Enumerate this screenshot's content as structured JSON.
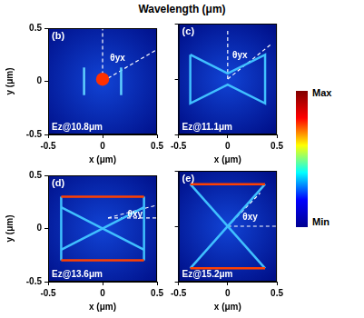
{
  "title": "Wavelength (μm)",
  "colorbar": {
    "max_label": "Max",
    "min_label": "Min"
  },
  "chart_data": [
    {
      "type": "scatter",
      "panel_label": "(b)",
      "annotation": "Ez@10.8μm",
      "angle_label": "θyx",
      "x_label": "x (μm)",
      "y_label": "y (μm)",
      "xlim": [
        -0.5,
        0.5
      ],
      "ylim": [
        -0.5,
        0.5
      ],
      "xticks": [
        -0.5,
        0,
        0.5
      ],
      "yticks": [
        -0.5,
        0,
        0.5
      ],
      "tick_labels": true,
      "grid": false,
      "features": [
        {
          "x": [
            -0.17,
            -0.17
          ],
          "y": [
            -0.13,
            0.13
          ],
          "color": "#60d0ff",
          "line_style": "solid"
        },
        {
          "x": [
            0.17,
            0.17
          ],
          "y": [
            -0.13,
            0.13
          ],
          "color": "#60d0ff",
          "line_style": "solid"
        },
        {
          "x": [
            0
          ],
          "y": [
            0.02
          ],
          "color": "#ff3000",
          "marker": "circle"
        },
        {
          "x": [
            0,
            0
          ],
          "y": [
            0,
            0.5
          ],
          "color": "#ffffff",
          "line_style": "dashed"
        },
        {
          "x": [
            0,
            0.5
          ],
          "y": [
            0,
            0.3
          ],
          "color": "#ffffff",
          "line_style": "dashed"
        }
      ]
    },
    {
      "type": "scatter",
      "panel_label": "(c)",
      "annotation": "Ez@11.1μm",
      "angle_label": "θyx",
      "x_label": "x (μm)",
      "xlim": [
        -0.5,
        0.5
      ],
      "ylim": [
        -0.5,
        0.5
      ],
      "xticks": [
        -0.5,
        0,
        0.5
      ],
      "yticks": [
        -0.5,
        0,
        0.5
      ],
      "tick_labels": "x",
      "grid": false,
      "features": [
        {
          "x": [
            -0.38,
            0,
            0.38,
            0.38,
            0,
            -0.38,
            -0.38
          ],
          "y": [
            0.22,
            0.05,
            0.22,
            -0.22,
            -0.05,
            -0.22,
            0.22
          ],
          "color": "#40c0ff",
          "line_style": "solid"
        },
        {
          "x": [
            0,
            0
          ],
          "y": [
            0,
            0.45
          ],
          "color": "#ffffff",
          "line_style": "dashed"
        },
        {
          "x": [
            0,
            0.45
          ],
          "y": [
            0,
            0.32
          ],
          "color": "#ffffff",
          "line_style": "dashed"
        }
      ]
    },
    {
      "type": "scatter",
      "panel_label": "(d)",
      "annotation": "Ez@13.6μm",
      "angle_label": "θxy",
      "x_label": "x (μm)",
      "y_label": "y (μm)",
      "xlim": [
        -0.5,
        0.5
      ],
      "ylim": [
        -0.5,
        0.5
      ],
      "xticks": [
        -0.5,
        0,
        0.5
      ],
      "yticks": [
        -0.5,
        0,
        0.5
      ],
      "tick_labels": true,
      "grid": false,
      "features": [
        {
          "x": [
            -0.38,
            0.38
          ],
          "y": [
            0.3,
            0.3
          ],
          "color": "#ff4000",
          "line_style": "solid"
        },
        {
          "x": [
            -0.38,
            0.38
          ],
          "y": [
            -0.3,
            -0.3
          ],
          "color": "#ff4000",
          "line_style": "solid"
        },
        {
          "x": [
            -0.38,
            -0.38
          ],
          "y": [
            -0.3,
            0.3
          ],
          "color": "#40c0ff",
          "line_style": "solid"
        },
        {
          "x": [
            0.38,
            0.38
          ],
          "y": [
            -0.3,
            0.3
          ],
          "color": "#40c0ff",
          "line_style": "solid"
        },
        {
          "x": [
            -0.38,
            0.38
          ],
          "y": [
            0.2,
            -0.2
          ],
          "color": "#40c0ff",
          "line_style": "solid"
        },
        {
          "x": [
            -0.38,
            0.38
          ],
          "y": [
            -0.2,
            0.2
          ],
          "color": "#40c0ff",
          "line_style": "solid"
        },
        {
          "x": [
            0.05,
            0.5
          ],
          "y": [
            0.1,
            0.1
          ],
          "color": "#ffffff",
          "line_style": "dashed"
        },
        {
          "x": [
            0.05,
            0.5
          ],
          "y": [
            0.1,
            0.22
          ],
          "color": "#ffffff",
          "line_style": "dashed"
        }
      ]
    },
    {
      "type": "scatter",
      "panel_label": "(e)",
      "annotation": "Ez@15.2μm",
      "angle_label": "θxy",
      "x_label": "x (μm)",
      "xlim": [
        -0.5,
        0.5
      ],
      "ylim": [
        -0.5,
        0.5
      ],
      "xticks": [
        -0.5,
        0,
        0.5
      ],
      "yticks": [
        -0.5,
        0,
        0.5
      ],
      "tick_labels": "x",
      "grid": false,
      "features": [
        {
          "x": [
            -0.38,
            0.38
          ],
          "y": [
            0.38,
            0.38
          ],
          "color": "#ff4000",
          "line_style": "solid"
        },
        {
          "x": [
            -0.38,
            0.38
          ],
          "y": [
            -0.38,
            -0.38
          ],
          "color": "#ff4000",
          "line_style": "solid"
        },
        {
          "x": [
            -0.38,
            0.38
          ],
          "y": [
            0.38,
            -0.38
          ],
          "color": "#40c0ff",
          "line_style": "solid"
        },
        {
          "x": [
            -0.38,
            0.38
          ],
          "y": [
            -0.38,
            0.38
          ],
          "color": "#40c0ff",
          "line_style": "solid"
        },
        {
          "x": [
            0,
            0.5
          ],
          "y": [
            0,
            0
          ],
          "color": "#ffffff",
          "line_style": "dashed"
        },
        {
          "x": [
            0,
            0.33
          ],
          "y": [
            0,
            0.3
          ],
          "color": "#ffffff",
          "line_style": "dashed"
        }
      ]
    }
  ]
}
